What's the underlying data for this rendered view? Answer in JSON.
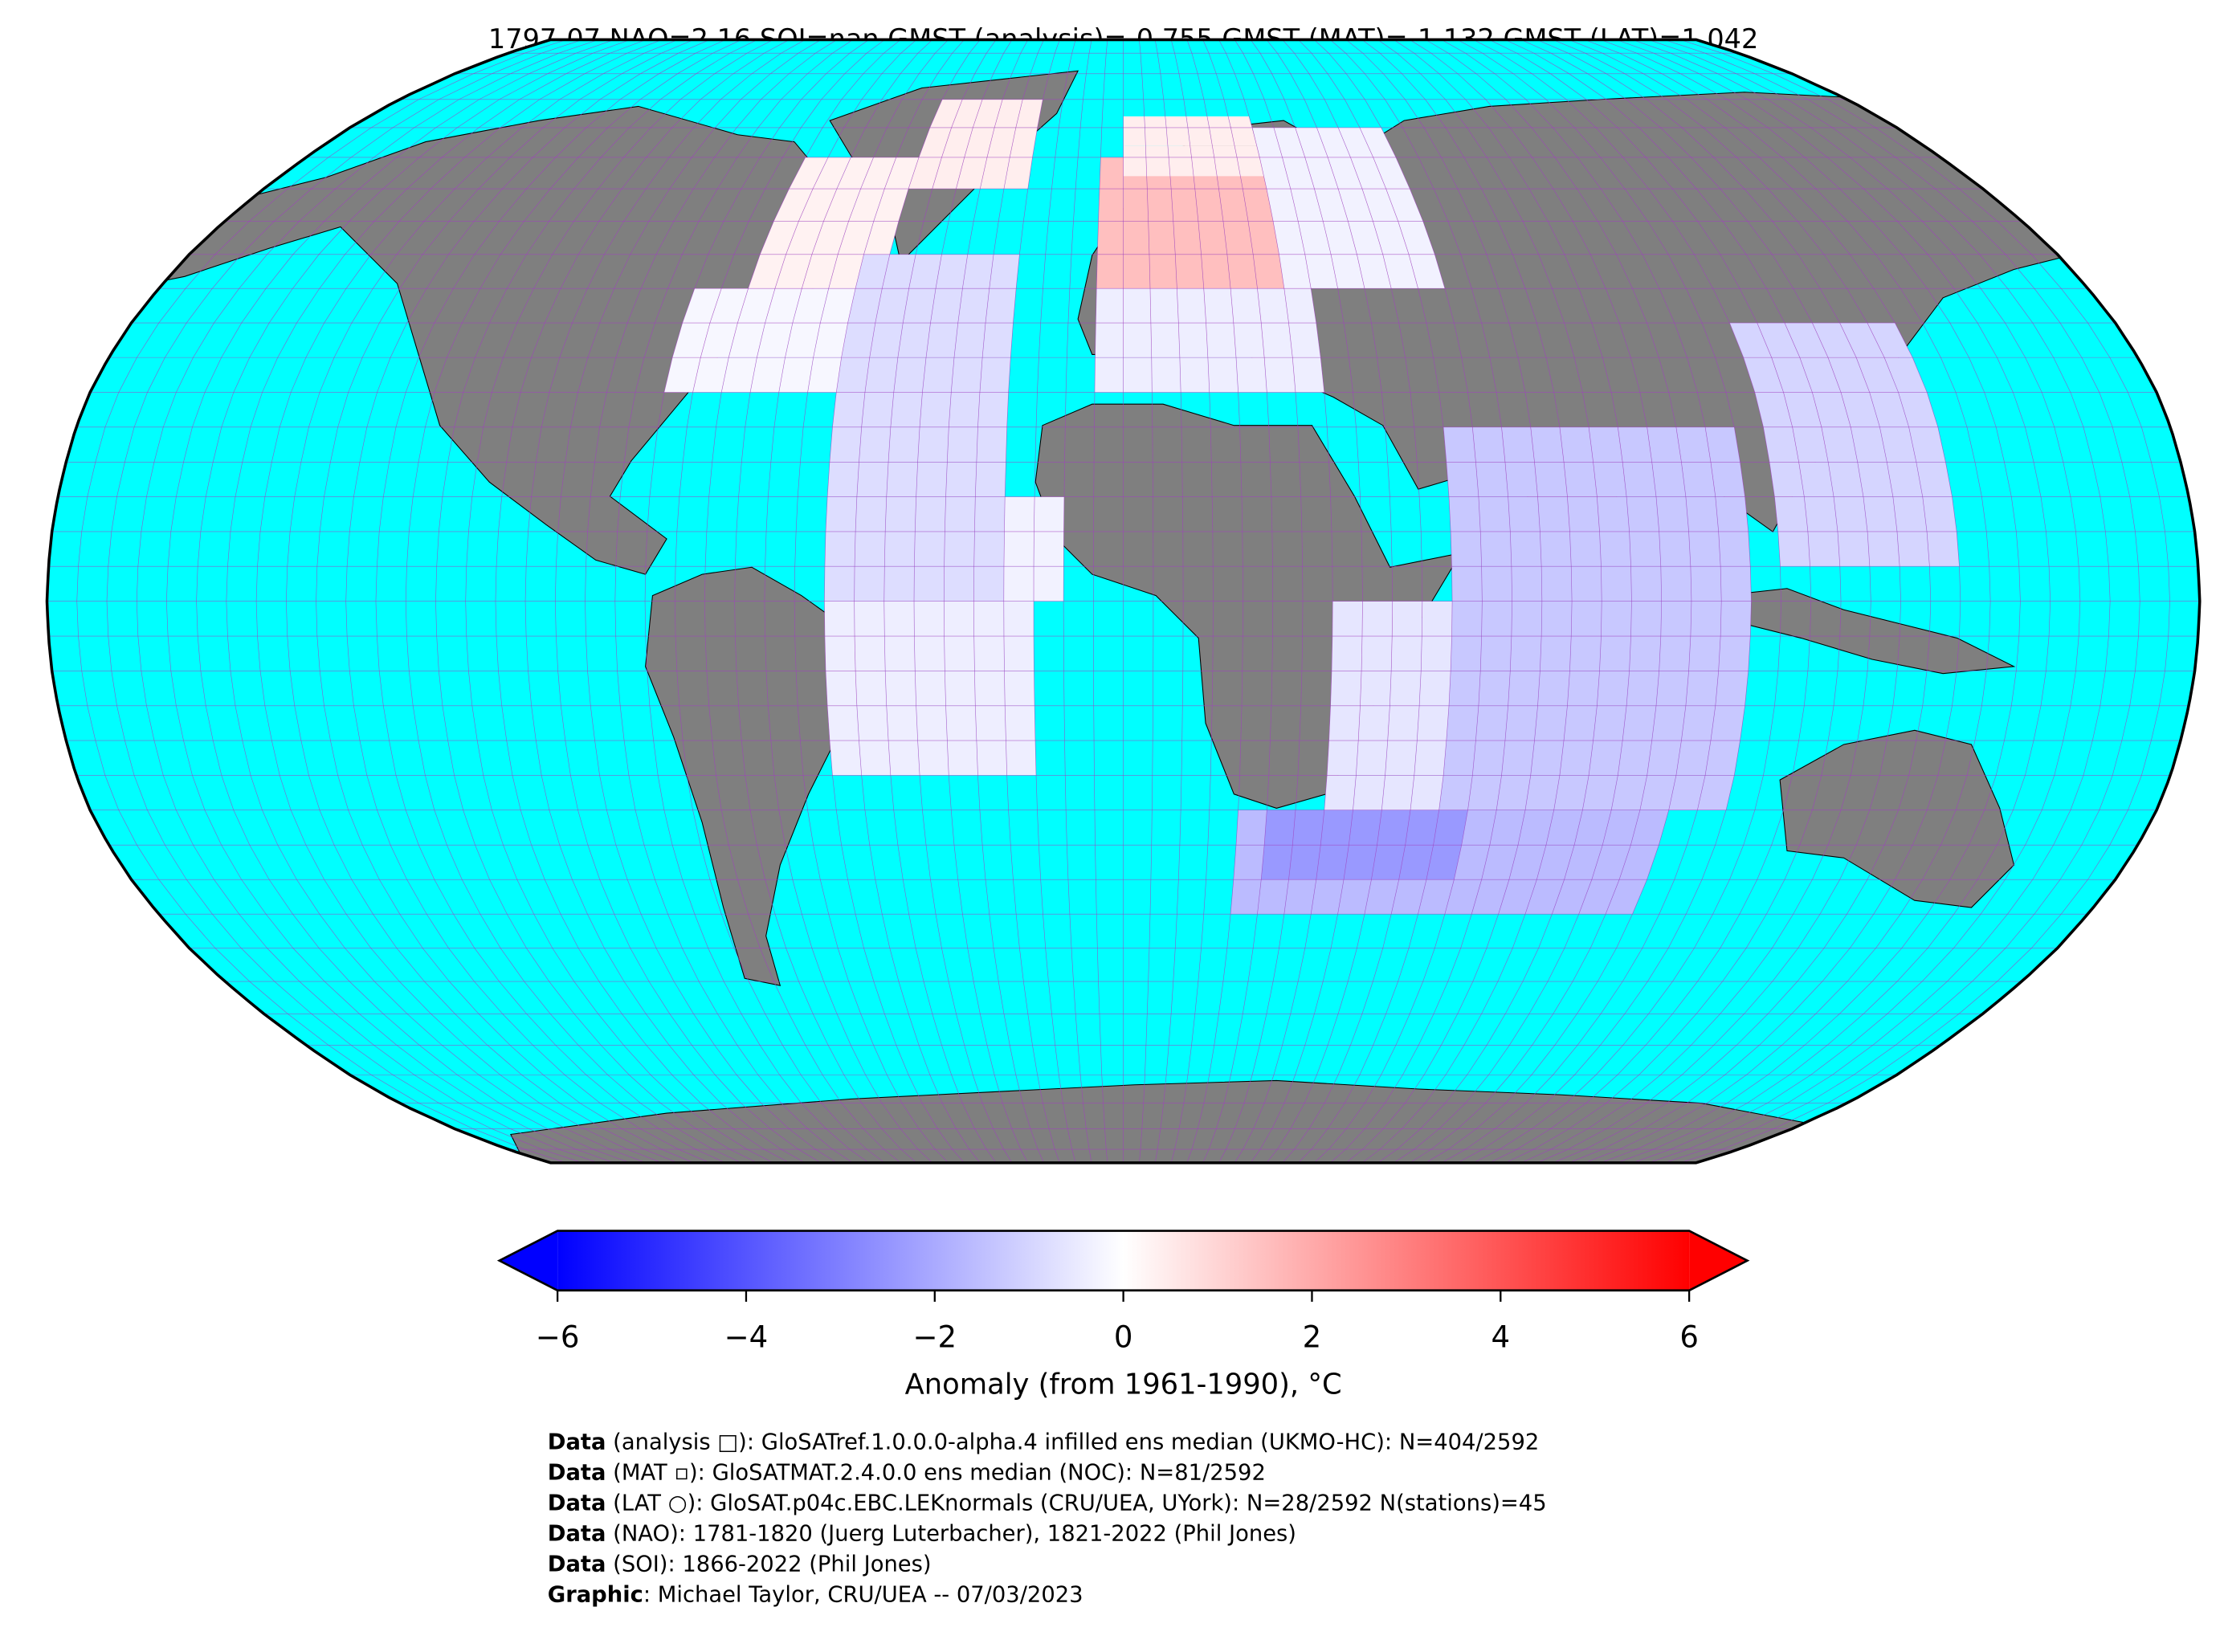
{
  "title": "1797-07 NAO=2.16 SOI=nan GMST (analysis)=-0.755 GMST (MAT)=-1.132 GMST (LAT)=1.042",
  "colors": {
    "ocean": "#00ffff",
    "land": "#7f7f7f",
    "graticule": "#a040c0",
    "cmap_low": "#0000ff",
    "cmap_mid": "#ffffff",
    "cmap_high": "#ff0000"
  },
  "map": {
    "projection": "Robinson",
    "graticule_step_deg": 5,
    "cells": [
      {
        "lon": [
          -80,
          -45
        ],
        "lat": [
          30,
          45
        ],
        "anomaly": -0.2
      },
      {
        "lon": [
          -70,
          -45
        ],
        "lat": [
          45,
          65
        ],
        "anomaly": 0.3
      },
      {
        "lon": [
          -45,
          -20
        ],
        "lat": [
          60,
          75
        ],
        "anomaly": 0.4
      },
      {
        "lon": [
          -5,
          30
        ],
        "lat": [
          45,
          62
        ],
        "anomaly": 1.5
      },
      {
        "lon": [
          0,
          30
        ],
        "lat": [
          62,
          72
        ],
        "anomaly": 0.4
      },
      {
        "lon": [
          30,
          60
        ],
        "lat": [
          45,
          70
        ],
        "anomaly": -0.3
      },
      {
        "lon": [
          -5,
          35
        ],
        "lat": [
          30,
          45
        ],
        "anomaly": -0.4
      },
      {
        "lon": [
          -50,
          -20
        ],
        "lat": [
          0,
          50
        ],
        "anomaly": -0.8
      },
      {
        "lon": [
          -50,
          -15
        ],
        "lat": [
          -25,
          0
        ],
        "anomaly": -0.4
      },
      {
        "lon": [
          -20,
          -10
        ],
        "lat": [
          0,
          15
        ],
        "anomaly": -0.3
      },
      {
        "lon": [
          35,
          55
        ],
        "lat": [
          -30,
          0
        ],
        "anomaly": -0.6
      },
      {
        "lon": [
          55,
          105
        ],
        "lat": [
          -30,
          25
        ],
        "anomaly": -1.3
      },
      {
        "lon": [
          20,
          95
        ],
        "lat": [
          -45,
          -30
        ],
        "anomaly": -1.6
      },
      {
        "lon": [
          25,
          60
        ],
        "lat": [
          -40,
          -30
        ],
        "anomaly": -2.4
      },
      {
        "lon": [
          110,
          140
        ],
        "lat": [
          5,
          40
        ],
        "anomaly": -1.0
      }
    ]
  },
  "colorbar": {
    "label": "Anomaly (from 1961-1990), °C",
    "range": [
      -6,
      6
    ],
    "ticks": [
      "−6",
      "−4",
      "−2",
      "0",
      "2",
      "4",
      "6"
    ],
    "extend": "both"
  },
  "footer": [
    {
      "prefix": "Data",
      "text": " (analysis □): GloSATref.1.0.0.0-alpha.4 infilled ens median (UKMO-HC): N=404/2592"
    },
    {
      "prefix": "Data",
      "text": " (MAT ▫): GloSATMAT.2.4.0.0 ens median (NOC): N=81/2592"
    },
    {
      "prefix": "Data",
      "text": " (LAT ○): GloSAT.p04c.EBC.LEKnormals (CRU/UEA, UYork): N=28/2592 N(stations)=45"
    },
    {
      "prefix": "Data",
      "text": " (NAO): 1781-1820 (Juerg Luterbacher), 1821-2022 (Phil Jones)"
    },
    {
      "prefix": "Data",
      "text": " (SOI): 1866-2022 (Phil Jones)"
    },
    {
      "prefix": "Graphic",
      "text": ": Michael Taylor, CRU/UEA -- 07/03/2023"
    }
  ]
}
